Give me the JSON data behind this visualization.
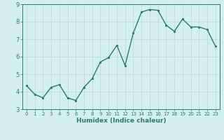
{
  "x": [
    0,
    1,
    2,
    3,
    4,
    5,
    6,
    7,
    8,
    9,
    10,
    11,
    12,
    13,
    14,
    15,
    16,
    17,
    18,
    19,
    20,
    21,
    22,
    23
  ],
  "y": [
    4.35,
    3.85,
    3.65,
    4.25,
    4.4,
    3.65,
    3.5,
    4.25,
    4.75,
    5.7,
    5.95,
    6.65,
    5.5,
    7.35,
    8.55,
    8.7,
    8.65,
    7.8,
    7.45,
    8.15,
    7.7,
    7.7,
    7.55,
    6.6
  ],
  "xlabel": "Humidex (Indice chaleur)",
  "line_color": "#2a7a6a",
  "marker_color": "#2a7a6a",
  "bg_color": "#d5efee",
  "grid_color": "#b8d8d5",
  "axis_label_color": "#2a7a6a",
  "tick_color": "#2a7a6a",
  "ylim": [
    3,
    9
  ],
  "xlim": [
    -0.5,
    23.5
  ],
  "yticks": [
    3,
    4,
    5,
    6,
    7,
    8,
    9
  ],
  "xticks": [
    0,
    1,
    2,
    3,
    4,
    5,
    6,
    7,
    8,
    9,
    10,
    11,
    12,
    13,
    14,
    15,
    16,
    17,
    18,
    19,
    20,
    21,
    22,
    23
  ],
  "linewidth": 1.0,
  "markersize": 2.5,
  "xlabel_fontsize": 6.5,
  "tick_fontsize_x": 5.0,
  "tick_fontsize_y": 6.0
}
